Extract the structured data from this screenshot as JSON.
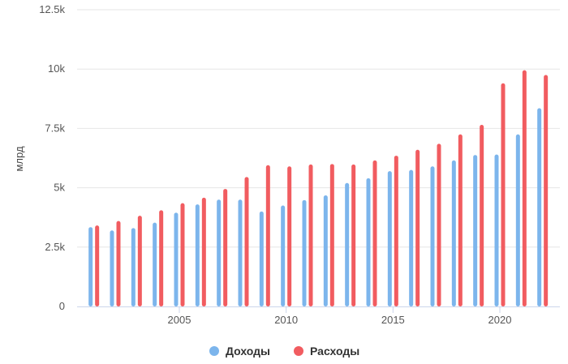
{
  "chart_data": {
    "type": "bar",
    "title": "",
    "xlabel": "",
    "ylabel": "млрд",
    "ylim": [
      0,
      12500
    ],
    "yticks": [
      {
        "value": 0,
        "label": "0"
      },
      {
        "value": 2500,
        "label": "2.5k"
      },
      {
        "value": 5000,
        "label": "5k"
      },
      {
        "value": 7500,
        "label": "7.5k"
      },
      {
        "value": 10000,
        "label": "10k"
      },
      {
        "value": 12500,
        "label": "12.5k"
      }
    ],
    "xticks": [
      {
        "value": 2005,
        "label": "2005"
      },
      {
        "value": 2010,
        "label": "2010"
      },
      {
        "value": 2015,
        "label": "2015"
      },
      {
        "value": 2020,
        "label": "2020"
      }
    ],
    "grid": true,
    "legend_position": "bottom",
    "x": [
      2001,
      2002,
      2003,
      2004,
      2005,
      2006,
      2007,
      2008,
      2009,
      2010,
      2011,
      2012,
      2013,
      2014,
      2015,
      2016,
      2017,
      2018,
      2019,
      2020,
      2021,
      2022
    ],
    "series": [
      {
        "name": "Доходы",
        "color": "#7cb5ec",
        "values": [
          3340,
          3200,
          3300,
          3530,
          3950,
          4300,
          4500,
          4500,
          4000,
          4250,
          4480,
          4680,
          5200,
          5400,
          5700,
          5750,
          5900,
          6150,
          6380,
          6400,
          7250,
          8350
        ]
      },
      {
        "name": "Расходы",
        "color": "#f15c60",
        "values": [
          3410,
          3600,
          3820,
          4050,
          4350,
          4580,
          4950,
          5450,
          5950,
          5900,
          5980,
          6000,
          5980,
          6150,
          6350,
          6600,
          6850,
          7250,
          7650,
          9400,
          9950,
          9750
        ]
      }
    ]
  }
}
